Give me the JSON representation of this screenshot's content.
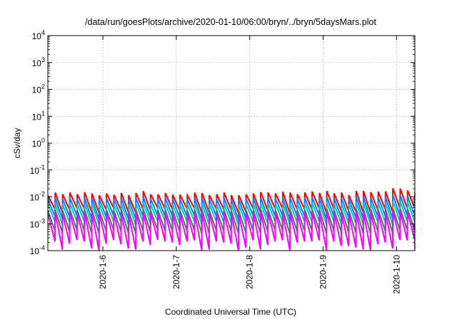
{
  "chart_data": {
    "type": "line",
    "title": "/data/run/goesPlots/archive/2020-01-10/06:00/bryn/../bryn/5daysMars.plot",
    "xlabel": "Coordinated Universal Time (UTC)",
    "ylabel": "cSv/day",
    "y_scale": "log",
    "ylim": [
      0.0001,
      10000
    ],
    "y_ticks": [
      {
        "value": 0.0001,
        "base": "10",
        "exp": "-4"
      },
      {
        "value": 0.001,
        "base": "10",
        "exp": "-3"
      },
      {
        "value": 0.01,
        "base": "10",
        "exp": "-2"
      },
      {
        "value": 0.1,
        "base": "10",
        "exp": "-1"
      },
      {
        "value": 1,
        "base": "10",
        "exp": "0"
      },
      {
        "value": 10,
        "base": "10",
        "exp": "1"
      },
      {
        "value": 100,
        "base": "10",
        "exp": "2"
      },
      {
        "value": 1000,
        "base": "10",
        "exp": "3"
      },
      {
        "value": 10000,
        "base": "10",
        "exp": "4"
      }
    ],
    "xlim": [
      "2020-01-05T06:00",
      "2020-01-10T06:00"
    ],
    "x_ticks": [
      {
        "value": "2020-01-06T00:00",
        "label": "2020-1-6"
      },
      {
        "value": "2020-01-07T00:00",
        "label": "2020-1-7"
      },
      {
        "value": "2020-01-08T00:00",
        "label": "2020-1-8"
      },
      {
        "value": "2020-01-09T00:00",
        "label": "2020-1-9"
      },
      {
        "value": "2020-01-10T00:00",
        "label": "2020-1-10"
      }
    ],
    "grid": true,
    "sawtooth_period_hours": 2.4,
    "series": [
      {
        "color": "#ff0000",
        "peak_values": [
          0.0115,
          0.0145,
          0.0125,
          0.0145,
          0.0125,
          0.015,
          0.0135,
          0.0115,
          0.0135,
          0.012,
          0.014,
          0.0115,
          0.014,
          0.0165,
          0.0125,
          0.0125,
          0.014,
          0.012,
          0.012,
          0.0115,
          0.0145,
          0.014,
          0.0115,
          0.0125,
          0.0145,
          0.0115,
          0.0115,
          0.0125,
          0.0135,
          0.015,
          0.0145,
          0.0135,
          0.0155,
          0.0145,
          0.0125,
          0.0145,
          0.0155,
          0.014,
          0.0165,
          0.0135,
          0.0145,
          0.0115,
          0.0165,
          0.0165,
          0.015,
          0.0155,
          0.016,
          0.021,
          0.0205,
          0.0175,
          0.015,
          0.0145,
          0.0185,
          0.0165,
          0.0155,
          0.0175,
          0.015,
          0.0165,
          0.0145,
          0.0185,
          0.018,
          0.0155,
          0.0165,
          0.0145,
          0.0155,
          0.0155,
          0.0125,
          0.0125,
          0.015,
          0.0125,
          0.0165,
          0.0145,
          0.0205,
          0.0175,
          0.0145,
          0.0155,
          0.0125
        ],
        "trough_values": [
          0.0035,
          0.0026,
          0.0033,
          0.0038,
          0.0036,
          0.0027,
          0.0025,
          0.0033,
          0.0038,
          0.0032,
          0.0027,
          0.0026,
          0.0035,
          0.0031,
          0.0038,
          0.0035,
          0.0034,
          0.0031,
          0.0036,
          0.0037,
          0.0025,
          0.0026,
          0.0035,
          0.0034,
          0.0033,
          0.0025,
          0.0028,
          0.0037,
          0.0026,
          0.0031,
          0.0036,
          0.0037,
          0.0025,
          0.0034,
          0.0035,
          0.0035,
          0.0037,
          0.0025,
          0.0035,
          0.003,
          0.003,
          0.0028,
          0.0026,
          0.0025,
          0.0032,
          0.0034,
          0.0027,
          0.0038,
          0.0037,
          0.0038,
          0.0026,
          0.003,
          0.0033,
          0.0025,
          0.0028,
          0.0028,
          0.0025,
          0.0031,
          0.0027,
          0.0025,
          0.0032,
          0.0031,
          0.0032,
          0.0028,
          0.0032,
          0.003,
          0.0035,
          0.0029,
          0.0032,
          0.0038,
          0.0031,
          0.0038,
          0.0025,
          0.0028,
          0.0037,
          0.0035,
          0.003
        ]
      },
      {
        "color": "#1f77ff",
        "peak_values": [
          0.0082,
          0.0093,
          0.0086,
          0.0093,
          0.0086,
          0.0094,
          0.009,
          0.0082,
          0.009,
          0.0085,
          0.0092,
          0.0082,
          0.0092,
          0.0101,
          0.0086,
          0.0086,
          0.0092,
          0.0085,
          0.0085,
          0.0082,
          0.0093,
          0.0092,
          0.0082,
          0.0086,
          0.0093,
          0.0082,
          0.0082,
          0.0086,
          0.009,
          0.0094,
          0.0093,
          0.009,
          0.0097,
          0.0093,
          0.0086,
          0.0093,
          0.0097,
          0.0092,
          0.0101,
          0.009,
          0.0093,
          0.0082,
          0.0101,
          0.0101,
          0.0094,
          0.0097,
          0.0099,
          0.0121,
          0.0119,
          0.0106,
          0.0094,
          0.0093,
          0.0111,
          0.0101,
          0.0097,
          0.0106,
          0.0094,
          0.0101,
          0.0093,
          0.0111,
          0.0109,
          0.0097,
          0.0101,
          0.0093,
          0.0097,
          0.0097,
          0.0086,
          0.0086,
          0.0094,
          0.0086,
          0.0101,
          0.0093,
          0.0119,
          0.0106,
          0.0093,
          0.0097,
          0.0086
        ],
        "trough_values": [
          0.0019,
          0.0015,
          0.0018,
          0.002,
          0.0019,
          0.0015,
          0.0014,
          0.0018,
          0.002,
          0.0018,
          0.0015,
          0.0015,
          0.0019,
          0.0017,
          0.002,
          0.0019,
          0.0019,
          0.0017,
          0.0019,
          0.002,
          0.0014,
          0.0015,
          0.0019,
          0.0019,
          0.0018,
          0.0014,
          0.0016,
          0.002,
          0.0015,
          0.0017,
          0.0019,
          0.002,
          0.0014,
          0.0019,
          0.0019,
          0.0019,
          0.002,
          0.0014,
          0.0019,
          0.0017,
          0.0017,
          0.0016,
          0.0015,
          0.0014,
          0.0018,
          0.0019,
          0.0015,
          0.002,
          0.002,
          0.002,
          0.0015,
          0.0017,
          0.0018,
          0.0014,
          0.0016,
          0.0016,
          0.0014,
          0.0017,
          0.0015,
          0.0014,
          0.0018,
          0.0017,
          0.0018,
          0.0016,
          0.0018,
          0.0017,
          0.0019,
          0.0016,
          0.0018,
          0.002,
          0.0017,
          0.002,
          0.0014,
          0.0016,
          0.002,
          0.0019,
          0.0017
        ]
      },
      {
        "color": "#00c8c8",
        "peak_values": [
          0.0053,
          0.0059,
          0.0055,
          0.0059,
          0.0055,
          0.006,
          0.0057,
          0.0053,
          0.0057,
          0.0054,
          0.0058,
          0.0053,
          0.0058,
          0.0063,
          0.0055,
          0.0055,
          0.0058,
          0.0054,
          0.0054,
          0.0053,
          0.0059,
          0.0058,
          0.0053,
          0.0055,
          0.0059,
          0.0053,
          0.0053,
          0.0055,
          0.0057,
          0.006,
          0.0059,
          0.0057,
          0.0061,
          0.0059,
          0.0055,
          0.0059,
          0.0061,
          0.0058,
          0.0063,
          0.0057,
          0.0059,
          0.0053,
          0.0063,
          0.0063,
          0.006,
          0.0061,
          0.0062,
          0.0072,
          0.0071,
          0.0066,
          0.006,
          0.0059,
          0.0068,
          0.0063,
          0.0061,
          0.0066,
          0.006,
          0.0063,
          0.0059,
          0.0068,
          0.0067,
          0.0061,
          0.0063,
          0.0059,
          0.0061,
          0.0061,
          0.0055,
          0.0055,
          0.006,
          0.0055,
          0.0063,
          0.0059,
          0.0071,
          0.0066,
          0.0059,
          0.0061,
          0.0055
        ],
        "trough_values": [
          0.0012,
          0.0009,
          0.0011,
          0.0012,
          0.0012,
          0.0009,
          0.0009,
          0.0011,
          0.0012,
          0.0011,
          0.0009,
          0.0009,
          0.0012,
          0.001,
          0.0012,
          0.0012,
          0.0011,
          0.001,
          0.0012,
          0.0012,
          0.0009,
          0.0009,
          0.0012,
          0.0011,
          0.0011,
          0.0009,
          0.001,
          0.0012,
          0.0009,
          0.001,
          0.0012,
          0.0012,
          0.0009,
          0.0011,
          0.0012,
          0.0012,
          0.0012,
          0.0009,
          0.0012,
          0.001,
          0.001,
          0.001,
          0.0009,
          0.0009,
          0.0011,
          0.0011,
          0.0009,
          0.0012,
          0.0012,
          0.0012,
          0.0009,
          0.001,
          0.0011,
          0.0009,
          0.001,
          0.001,
          0.0009,
          0.001,
          0.0009,
          0.0009,
          0.0011,
          0.001,
          0.0011,
          0.001,
          0.0011,
          0.001,
          0.0012,
          0.001,
          0.0011,
          0.0012,
          0.001,
          0.0012,
          0.0009,
          0.001,
          0.0012,
          0.0012,
          0.001
        ]
      },
      {
        "color": "#2e8b57",
        "peak_values": [
          0.0031,
          0.0034,
          0.0032,
          0.0034,
          0.0032,
          0.0034,
          0.0033,
          0.0031,
          0.0033,
          0.0032,
          0.0033,
          0.0031,
          0.0033,
          0.0035,
          0.0032,
          0.0032,
          0.0033,
          0.0032,
          0.0032,
          0.0031,
          0.0034,
          0.0033,
          0.0031,
          0.0032,
          0.0034,
          0.0031,
          0.0031,
          0.0032,
          0.0033,
          0.0034,
          0.0034,
          0.0033,
          0.0034,
          0.0034,
          0.0032,
          0.0034,
          0.0034,
          0.0033,
          0.0035,
          0.0033,
          0.0034,
          0.0031,
          0.0035,
          0.0035,
          0.0034,
          0.0034,
          0.0035,
          0.0038,
          0.0038,
          0.0036,
          0.0034,
          0.0034,
          0.0037,
          0.0035,
          0.0034,
          0.0036,
          0.0034,
          0.0035,
          0.0034,
          0.0037,
          0.0036,
          0.0034,
          0.0035,
          0.0034,
          0.0034,
          0.0034,
          0.0032,
          0.0032,
          0.0034,
          0.0032,
          0.0035,
          0.0034,
          0.0038,
          0.0036,
          0.0034,
          0.0034,
          0.0032
        ],
        "trough_values": [
          0.00055,
          0.00044,
          0.00052,
          0.00058,
          0.00055,
          0.00045,
          0.00043,
          0.00052,
          0.00058,
          0.00051,
          0.00045,
          0.00044,
          0.00055,
          0.0005,
          0.00058,
          0.00055,
          0.00053,
          0.0005,
          0.00055,
          0.00057,
          0.00043,
          0.00044,
          0.00055,
          0.00053,
          0.00052,
          0.00043,
          0.00046,
          0.00057,
          0.00044,
          0.0005,
          0.00055,
          0.00057,
          0.00043,
          0.00053,
          0.00055,
          0.00055,
          0.00057,
          0.00043,
          0.00055,
          0.00049,
          0.00049,
          0.00046,
          0.00044,
          0.00043,
          0.00051,
          0.00053,
          0.00045,
          0.00058,
          0.00057,
          0.00058,
          0.00044,
          0.00049,
          0.00052,
          0.00043,
          0.00046,
          0.00046,
          0.00043,
          0.0005,
          0.00045,
          0.00043,
          0.00051,
          0.0005,
          0.00051,
          0.00046,
          0.00051,
          0.00049,
          0.00055,
          0.00047,
          0.00051,
          0.00058,
          0.0005,
          0.00058,
          0.00043,
          0.00046,
          0.00057,
          0.00055,
          0.00049
        ]
      },
      {
        "color": "#ff00ff",
        "peak_values": [
          0.0024,
          0.0026,
          0.0025,
          0.0026,
          0.0025,
          0.0027,
          0.0026,
          0.0024,
          0.0026,
          0.0025,
          0.0026,
          0.0024,
          0.0026,
          0.0028,
          0.0025,
          0.0025,
          0.0026,
          0.0025,
          0.0025,
          0.0024,
          0.0026,
          0.0026,
          0.0024,
          0.0025,
          0.0026,
          0.0024,
          0.0024,
          0.0025,
          0.0026,
          0.0027,
          0.0026,
          0.0026,
          0.0027,
          0.0026,
          0.0025,
          0.0026,
          0.0027,
          0.0026,
          0.0028,
          0.0026,
          0.0026,
          0.0024,
          0.0028,
          0.0028,
          0.0027,
          0.0027,
          0.0027,
          0.003,
          0.003,
          0.0028,
          0.0027,
          0.0026,
          0.0029,
          0.0028,
          0.0027,
          0.0028,
          0.0027,
          0.0028,
          0.0026,
          0.0029,
          0.0029,
          0.0027,
          0.0028,
          0.0026,
          0.0027,
          0.0027,
          0.0025,
          0.0025,
          0.0027,
          0.0025,
          0.0028,
          0.0026,
          0.003,
          0.0028,
          0.0026,
          0.0027,
          0.0025
        ],
        "trough_values": [
          0.00022,
          0.00011,
          0.00018,
          0.00025,
          0.00022,
          0.00012,
          0.0001,
          0.00018,
          0.00025,
          0.00017,
          0.00012,
          0.00011,
          0.00022,
          0.00016,
          0.00025,
          0.00022,
          0.0002,
          0.00016,
          0.00022,
          0.00024,
          0.0001,
          0.00011,
          0.00022,
          0.0002,
          0.00018,
          0.0001,
          0.00013,
          0.00024,
          0.00011,
          0.00016,
          0.00022,
          0.00024,
          0.0001,
          0.0002,
          0.00022,
          0.00022,
          0.00024,
          0.0001,
          0.00022,
          0.00015,
          0.00015,
          0.00013,
          0.00011,
          0.0001,
          0.00017,
          0.0002,
          0.00012,
          0.00025,
          0.00024,
          0.00025,
          0.00011,
          0.00015,
          0.00018,
          0.0001,
          0.00013,
          0.00013,
          0.0001,
          0.00016,
          0.00012,
          0.0001,
          0.00017,
          0.00016,
          0.00017,
          0.00013,
          0.00017,
          0.00015,
          0.00022,
          0.00014,
          0.00017,
          0.00025,
          0.00016,
          0.00025,
          0.0001,
          0.00013,
          0.00024,
          0.00022,
          0.00015
        ]
      }
    ]
  }
}
